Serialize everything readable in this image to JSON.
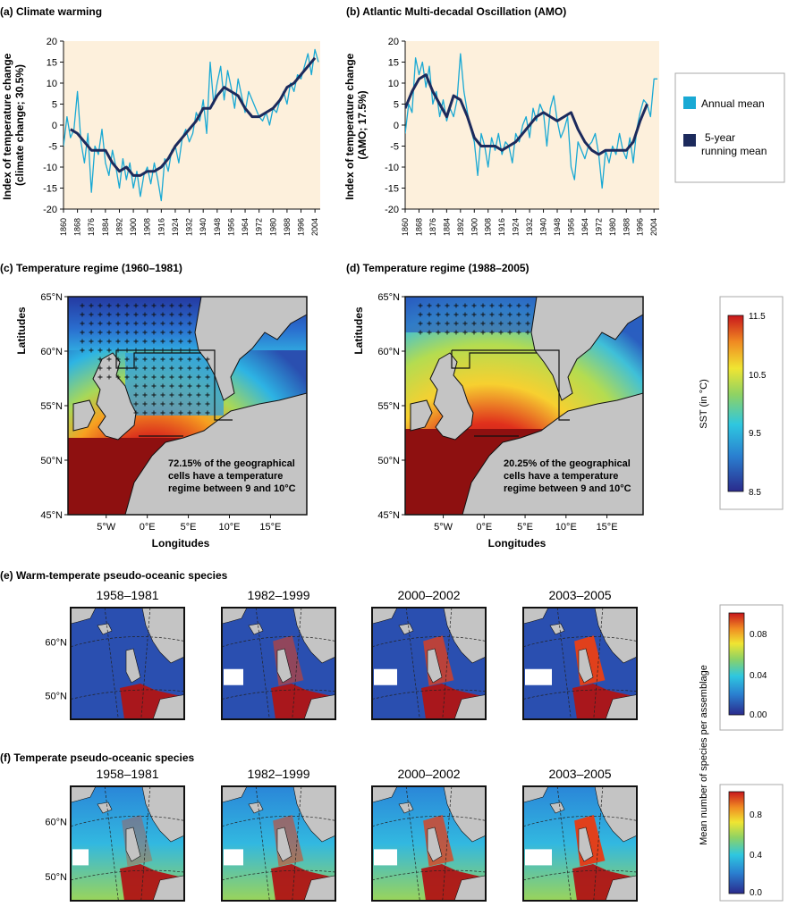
{
  "colors": {
    "annual": "#19a9d4",
    "running": "#1c2a5c",
    "plot_bg": "#fdf0dc",
    "land": "#c4c4c4",
    "sea_red": "#8e1010"
  },
  "chart_data": [
    {
      "id": "a",
      "type": "line",
      "title": "(a) Climate warming",
      "ylabel": "Index of temperature change (climate change; 30.5%)",
      "ylim": [
        -20,
        20
      ],
      "yticks": [
        20,
        15,
        10,
        5,
        0,
        -5,
        -10,
        -15,
        -20
      ],
      "xlim": [
        1860,
        2007
      ],
      "xticks": [
        "1860",
        "1868",
        "1876",
        "1884",
        "1892",
        "1900",
        "1908",
        "1916",
        "1924",
        "1932",
        "1940",
        "1948",
        "1956",
        "1964",
        "1972",
        "1980",
        "1988",
        "1996",
        "2004"
      ],
      "series": [
        {
          "name": "Annual mean",
          "x": [
            1860,
            1862,
            1864,
            1866,
            1868,
            1870,
            1872,
            1874,
            1876,
            1878,
            1880,
            1882,
            1884,
            1886,
            1888,
            1890,
            1892,
            1894,
            1896,
            1898,
            1900,
            1902,
            1904,
            1906,
            1908,
            1910,
            1912,
            1914,
            1916,
            1918,
            1920,
            1922,
            1924,
            1926,
            1928,
            1930,
            1932,
            1934,
            1936,
            1938,
            1940,
            1942,
            1944,
            1946,
            1948,
            1950,
            1952,
            1954,
            1956,
            1958,
            1960,
            1962,
            1964,
            1966,
            1968,
            1970,
            1972,
            1974,
            1976,
            1978,
            1980,
            1982,
            1984,
            1986,
            1988,
            1990,
            1992,
            1994,
            1996,
            1998,
            2000,
            2002,
            2004,
            2006
          ],
          "y": [
            -5,
            2,
            -3,
            -1,
            8,
            -4,
            -9,
            -2,
            -16,
            -5,
            -7,
            -1,
            -9,
            -12,
            -6,
            -10,
            -15,
            -8,
            -13,
            -9,
            -15,
            -11,
            -17,
            -12,
            -10,
            -14,
            -9,
            -13,
            -18,
            -8,
            -11,
            -6,
            -5,
            -9,
            -3,
            -1,
            -4,
            -2,
            3,
            1,
            6,
            -2,
            15,
            5,
            10,
            14,
            6,
            13,
            9,
            4,
            11,
            7,
            3,
            8,
            6,
            4,
            2,
            1,
            3,
            0,
            4,
            3,
            6,
            8,
            5,
            10,
            8,
            12,
            11,
            14,
            17,
            12,
            18,
            15
          ]
        },
        {
          "name": "5-year running mean",
          "x": [
            1864,
            1868,
            1872,
            1876,
            1880,
            1884,
            1888,
            1892,
            1896,
            1900,
            1904,
            1908,
            1912,
            1916,
            1920,
            1924,
            1928,
            1932,
            1936,
            1940,
            1944,
            1948,
            1952,
            1956,
            1960,
            1964,
            1968,
            1972,
            1976,
            1980,
            1984,
            1988,
            1992,
            1996,
            2000,
            2004
          ],
          "y": [
            -1,
            -2,
            -4,
            -6,
            -6,
            -6,
            -9,
            -11,
            -10,
            -12,
            -12,
            -11,
            -11,
            -10,
            -8,
            -5,
            -3,
            -1,
            1,
            4,
            4,
            7,
            9,
            8,
            7,
            4,
            2,
            2,
            3,
            4,
            6,
            9,
            10,
            12,
            14,
            16
          ]
        }
      ]
    },
    {
      "id": "b",
      "type": "line",
      "title": "(b) Atlantic Multi-decadal Oscillation (AMO)",
      "ylabel": "Index of temperature change (AMO; 17.5%)",
      "ylim": [
        -20,
        20
      ],
      "yticks": [
        20,
        15,
        10,
        5,
        0,
        -5,
        -10,
        -15,
        -20
      ],
      "xlim": [
        1860,
        2007
      ],
      "xticks": [
        "1860",
        "1868",
        "1876",
        "1884",
        "1892",
        "1900",
        "1908",
        "1916",
        "1924",
        "1932",
        "1940",
        "1948",
        "1956",
        "1964",
        "1972",
        "1980",
        "1988",
        "1996",
        "2004"
      ],
      "series": [
        {
          "name": "Annual mean",
          "x": [
            1860,
            1862,
            1864,
            1866,
            1868,
            1870,
            1872,
            1874,
            1876,
            1878,
            1880,
            1882,
            1884,
            1886,
            1888,
            1890,
            1892,
            1894,
            1896,
            1898,
            1900,
            1902,
            1904,
            1906,
            1908,
            1910,
            1912,
            1914,
            1916,
            1918,
            1920,
            1922,
            1924,
            1926,
            1928,
            1930,
            1932,
            1934,
            1936,
            1938,
            1940,
            1942,
            1944,
            1946,
            1948,
            1950,
            1952,
            1954,
            1956,
            1958,
            1960,
            1962,
            1964,
            1966,
            1968,
            1970,
            1972,
            1974,
            1976,
            1978,
            1980,
            1982,
            1984,
            1986,
            1988,
            1990,
            1992,
            1994,
            1996,
            1998,
            2000,
            2002,
            2004,
            2006
          ],
          "y": [
            -2,
            5,
            3,
            16,
            12,
            15,
            9,
            14,
            5,
            8,
            2,
            6,
            1,
            4,
            2,
            6,
            17,
            8,
            3,
            -1,
            -4,
            -12,
            -2,
            -5,
            -10,
            -3,
            -6,
            -2,
            -7,
            -4,
            -5,
            -9,
            -2,
            -4,
            0,
            2,
            -3,
            4,
            1,
            5,
            3,
            -5,
            4,
            7,
            1,
            -3,
            -1,
            2,
            -10,
            -13,
            -4,
            -6,
            -8,
            -5,
            -4,
            -2,
            -7,
            -15,
            -6,
            -9,
            -5,
            -7,
            -2,
            -6,
            -8,
            -3,
            -9,
            -1,
            3,
            6,
            5,
            2,
            11,
            11
          ]
        },
        {
          "name": "5-year running mean",
          "x": [
            1860,
            1864,
            1868,
            1872,
            1876,
            1880,
            1884,
            1888,
            1892,
            1896,
            1900,
            1904,
            1908,
            1912,
            1916,
            1920,
            1924,
            1928,
            1932,
            1936,
            1940,
            1944,
            1948,
            1952,
            1956,
            1960,
            1964,
            1968,
            1972,
            1976,
            1980,
            1984,
            1988,
            1992,
            1996,
            2000
          ],
          "y": [
            4,
            8,
            11,
            12,
            8,
            5,
            2,
            7,
            6,
            2,
            -3,
            -5,
            -5,
            -5,
            -6,
            -5,
            -4,
            -2,
            0,
            2,
            3,
            2,
            1,
            2,
            3,
            -1,
            -4,
            -6,
            -7,
            -6,
            -6,
            -6,
            -6,
            -4,
            1,
            5
          ]
        }
      ]
    }
  ],
  "legend": {
    "annual": "Annual mean",
    "running_line1": "5-year",
    "running_line2": "running mean"
  },
  "panel_c": {
    "title": "(c) Temperature regime (1960–1981)",
    "note": [
      "72.15% of the geographical",
      "cells have a temperature",
      "regime between 9 and 10°C"
    ]
  },
  "panel_d": {
    "title": "(d) Temperature regime (1988–2005)",
    "note": [
      "20.25% of the geographical",
      "cells have a temperature",
      "regime between 9 and 10°C"
    ]
  },
  "map_axes": {
    "ylabel": "Latitudes",
    "xlabel": "Longitudes",
    "lat_ticks": [
      "65°N",
      "60°N",
      "55°N",
      "50°N",
      "45°N"
    ],
    "lon_ticks": [
      "5°W",
      "0°E",
      "5°E",
      "10°E",
      "15°E"
    ]
  },
  "sst_colorbar": {
    "label": "SST (in °C)",
    "ticks": [
      "11.5",
      "10.5",
      "9.5",
      "8.5"
    ]
  },
  "panel_e": {
    "title": "(e) Warm-temperate pseudo-oceanic species",
    "periods": [
      "1958–1981",
      "1982–1999",
      "2000–2002",
      "2003–2005"
    ],
    "lat_ticks": [
      "60°N",
      "50°N"
    ]
  },
  "panel_f": {
    "title": "(f) Temperate pseudo-oceanic species",
    "periods": [
      "1958–1981",
      "1982–1999",
      "2000–2002",
      "2003–2005"
    ],
    "lat_ticks": [
      "60°N",
      "50°N"
    ]
  },
  "species_colorbar": {
    "label": "Mean number of species per assemblage",
    "e_ticks": [
      "0.08",
      "0.04",
      "0.00"
    ],
    "f_ticks": [
      "0.8",
      "0.4",
      "0.0"
    ]
  }
}
